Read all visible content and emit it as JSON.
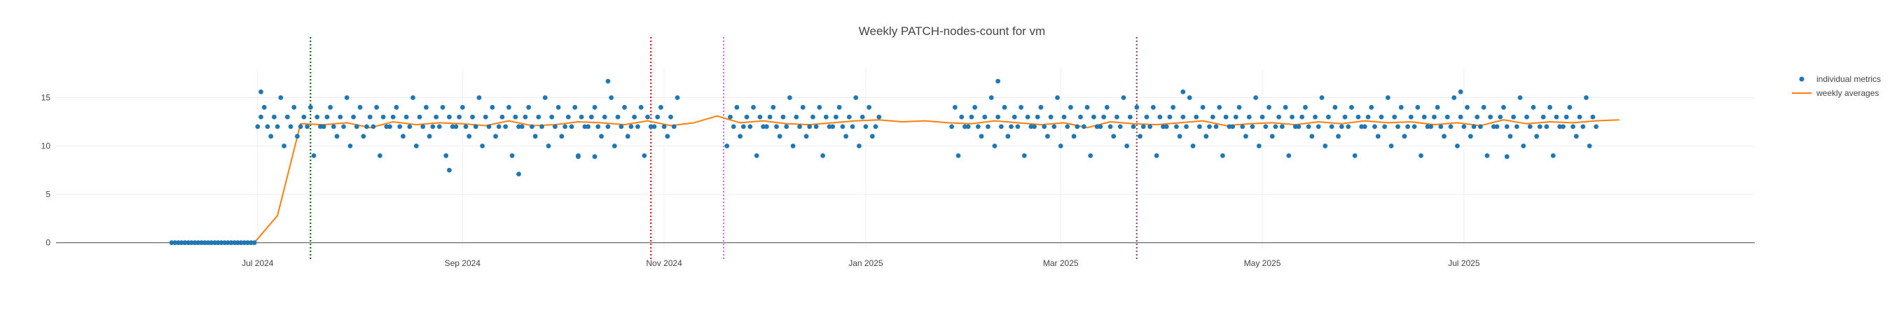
{
  "chart_data": {
    "type": "scatter",
    "title": "Weekly PATCH-nodes-count for vm",
    "xlabel": "",
    "ylabel": "",
    "grid": true,
    "legend_placement": "top-right",
    "xlim": [
      "2024-05-01",
      "2025-09-27"
    ],
    "ylim": [
      -0.6,
      18
    ],
    "x_ticks": [
      {
        "date": "2024-07-01",
        "label": "Jul 2024"
      },
      {
        "date": "2024-09-01",
        "label": "Sep 2024"
      },
      {
        "date": "2024-11-01",
        "label": "Nov 2024"
      },
      {
        "date": "2025-01-01",
        "label": "Jan 2025"
      },
      {
        "date": "2025-03-01",
        "label": "Mar 2025"
      },
      {
        "date": "2025-05-01",
        "label": "May 2025"
      },
      {
        "date": "2025-07-01",
        "label": "Jul 2025"
      }
    ],
    "y_ticks": [
      0,
      5,
      10,
      15
    ],
    "colors": {
      "points": "#1f77b4",
      "averages": "#ff7f0e",
      "vline_green": "#006400",
      "vline_red": "#e00000",
      "vline_magenta": "#e066e0",
      "vline_purple": "#8b3a62"
    },
    "vlines": [
      {
        "date": "2024-07-17",
        "color": "vline_green"
      },
      {
        "date": "2024-10-28",
        "color": "vline_red"
      },
      {
        "date": "2024-11-19",
        "color": "vline_magenta"
      },
      {
        "date": "2025-03-24",
        "color": "vline_purple"
      }
    ],
    "series": [
      {
        "name": "individual metrics",
        "kind": "points",
        "zero_range": [
          "2024-06-05",
          "2024-06-30"
        ],
        "nonzero_segments": [
          [
            "2024-07-01",
            "2024-11-05"
          ],
          [
            "2024-11-20",
            "2025-01-05"
          ],
          [
            "2025-01-27",
            "2025-08-10"
          ]
        ],
        "values_cycle": [
          12,
          13,
          14,
          12,
          11,
          13,
          12,
          15,
          10,
          13,
          12,
          14,
          11,
          12,
          13,
          12,
          14,
          9,
          13,
          12
        ],
        "outliers": [
          {
            "x": "2024-07-02",
            "y": 15.6
          },
          {
            "x": "2024-08-28",
            "y": 7.5
          },
          {
            "x": "2024-09-18",
            "y": 7.1
          },
          {
            "x": "2024-10-06",
            "y": 8.9
          },
          {
            "x": "2024-10-11",
            "y": 8.9
          },
          {
            "x": "2024-10-15",
            "y": 16.7
          },
          {
            "x": "2025-02-10",
            "y": 16.7
          },
          {
            "x": "2025-04-07",
            "y": 15.6
          },
          {
            "x": "2025-06-30",
            "y": 15.6
          },
          {
            "x": "2025-07-14",
            "y": 8.9
          }
        ]
      },
      {
        "name": "weekly averages",
        "kind": "line",
        "points": [
          [
            "2024-06-27",
            0
          ],
          [
            "2024-06-30",
            0
          ],
          [
            "2024-07-07",
            2.8
          ],
          [
            "2024-07-14",
            12.3
          ],
          [
            "2024-07-21",
            12.2
          ],
          [
            "2024-07-28",
            12.4
          ],
          [
            "2024-08-04",
            11.9
          ],
          [
            "2024-08-11",
            12.5
          ],
          [
            "2024-08-18",
            12.2
          ],
          [
            "2024-08-25",
            12.4
          ],
          [
            "2024-09-01",
            12.3
          ],
          [
            "2024-09-08",
            12.1
          ],
          [
            "2024-09-15",
            12.6
          ],
          [
            "2024-09-22",
            12.1
          ],
          [
            "2024-09-29",
            12.2
          ],
          [
            "2024-10-06",
            12.5
          ],
          [
            "2024-10-13",
            12.4
          ],
          [
            "2024-10-20",
            12.2
          ],
          [
            "2024-10-27",
            12.6
          ],
          [
            "2024-11-03",
            12.1
          ],
          [
            "2024-11-10",
            12.4
          ],
          [
            "2024-11-17",
            13.1
          ],
          [
            "2024-11-24",
            12.4
          ],
          [
            "2024-12-01",
            12.6
          ],
          [
            "2024-12-08",
            12.3
          ],
          [
            "2024-12-15",
            12.2
          ],
          [
            "2024-12-22",
            12.4
          ],
          [
            "2024-12-29",
            12.6
          ],
          [
            "2025-01-05",
            12.7
          ],
          [
            "2025-01-12",
            12.5
          ],
          [
            "2025-01-19",
            12.6
          ],
          [
            "2025-01-26",
            12.4
          ],
          [
            "2025-02-02",
            12.3
          ],
          [
            "2025-02-09",
            12.6
          ],
          [
            "2025-02-16",
            12.4
          ],
          [
            "2025-02-23",
            12.2
          ],
          [
            "2025-03-02",
            12.4
          ],
          [
            "2025-03-09",
            11.9
          ],
          [
            "2025-03-16",
            12.5
          ],
          [
            "2025-03-23",
            12.3
          ],
          [
            "2025-03-30",
            12.2
          ],
          [
            "2025-04-06",
            12.4
          ],
          [
            "2025-04-13",
            12.6
          ],
          [
            "2025-04-20",
            12.1
          ],
          [
            "2025-04-27",
            12.3
          ],
          [
            "2025-05-04",
            12.4
          ],
          [
            "2025-05-11",
            12.2
          ],
          [
            "2025-05-18",
            12.5
          ],
          [
            "2025-05-25",
            12.3
          ],
          [
            "2025-06-01",
            12.6
          ],
          [
            "2025-06-08",
            12.4
          ],
          [
            "2025-06-15",
            12.5
          ],
          [
            "2025-06-22",
            12.2
          ],
          [
            "2025-06-29",
            12.4
          ],
          [
            "2025-07-06",
            12.1
          ],
          [
            "2025-07-13",
            12.7
          ],
          [
            "2025-07-20",
            12.3
          ],
          [
            "2025-07-27",
            12.5
          ],
          [
            "2025-08-03",
            12.4
          ],
          [
            "2025-08-10",
            12.6
          ],
          [
            "2025-08-17",
            12.7
          ]
        ]
      }
    ]
  }
}
